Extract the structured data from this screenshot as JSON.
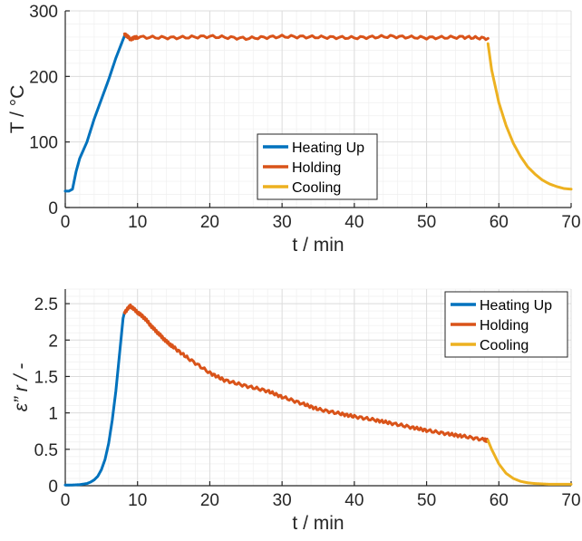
{
  "colors": {
    "heating": "#0072BD",
    "holding": "#D95319",
    "cooling": "#EDB120"
  },
  "chart_data": [
    {
      "type": "line",
      "xlabel": "t / min",
      "ylabel": "T / °C",
      "xlim": [
        0,
        70
      ],
      "ylim": [
        0,
        300
      ],
      "xticks": [
        "0",
        "10",
        "20",
        "30",
        "40",
        "50",
        "60",
        "70"
      ],
      "yticks": [
        "0",
        "100",
        "200",
        "300"
      ],
      "grid": true,
      "legend": "center",
      "series": [
        {
          "name": "Heating Up",
          "x": [
            0,
            0.5,
            1,
            1.5,
            2,
            3,
            4,
            5,
            6,
            7,
            8.2
          ],
          "y": [
            25,
            25,
            28,
            55,
            75,
            100,
            135,
            165,
            195,
            228,
            262
          ]
        },
        {
          "name": "Holding",
          "x": [
            8.2,
            9,
            10,
            15,
            20,
            25,
            30,
            35,
            40,
            45,
            50,
            55,
            58.5
          ],
          "y": [
            265,
            257,
            260,
            259,
            261,
            258,
            261,
            260,
            259,
            261,
            259,
            260,
            258
          ]
        },
        {
          "name": "Cooling",
          "x": [
            58.5,
            59,
            60,
            61,
            62,
            63,
            64,
            65,
            66,
            67,
            68,
            69,
            70
          ],
          "y": [
            250,
            210,
            160,
            125,
            98,
            78,
            62,
            51,
            42,
            36,
            32,
            29,
            28
          ]
        }
      ]
    },
    {
      "type": "line",
      "xlabel": "t / min",
      "ylabel": "ε” r / -",
      "xlim": [
        0,
        70
      ],
      "ylim": [
        0,
        2.7
      ],
      "xticks": [
        "0",
        "10",
        "20",
        "30",
        "40",
        "50",
        "60",
        "70"
      ],
      "yticks": [
        "0",
        "0.5",
        "1",
        "1.5",
        "2",
        "2.5"
      ],
      "grid": true,
      "legend": "top-right",
      "series": [
        {
          "name": "Heating Up",
          "x": [
            0,
            1,
            2,
            3,
            3.5,
            4,
            4.5,
            5,
            5.5,
            6,
            6.5,
            7,
            7.5,
            8,
            8.2
          ],
          "y": [
            0.01,
            0.01,
            0.015,
            0.03,
            0.05,
            0.08,
            0.13,
            0.22,
            0.36,
            0.58,
            0.9,
            1.3,
            1.8,
            2.3,
            2.38
          ]
        },
        {
          "name": "Holding",
          "x": [
            8.2,
            9,
            10,
            11,
            12,
            13,
            14,
            15,
            17,
            20,
            22,
            25,
            28,
            30,
            33,
            35,
            38,
            40,
            43,
            45,
            48,
            50,
            53,
            55,
            58,
            58.5
          ],
          "y": [
            2.38,
            2.47,
            2.38,
            2.3,
            2.18,
            2.08,
            1.98,
            1.9,
            1.75,
            1.55,
            1.45,
            1.37,
            1.3,
            1.22,
            1.12,
            1.05,
            0.99,
            0.95,
            0.9,
            0.86,
            0.8,
            0.76,
            0.71,
            0.68,
            0.63,
            0.62
          ]
        },
        {
          "name": "Cooling",
          "x": [
            58.5,
            59,
            60,
            61,
            62,
            63,
            64,
            65,
            66,
            67,
            68,
            69,
            70
          ],
          "y": [
            0.62,
            0.5,
            0.3,
            0.17,
            0.1,
            0.06,
            0.04,
            0.03,
            0.025,
            0.02,
            0.02,
            0.02,
            0.02
          ]
        }
      ]
    }
  ]
}
